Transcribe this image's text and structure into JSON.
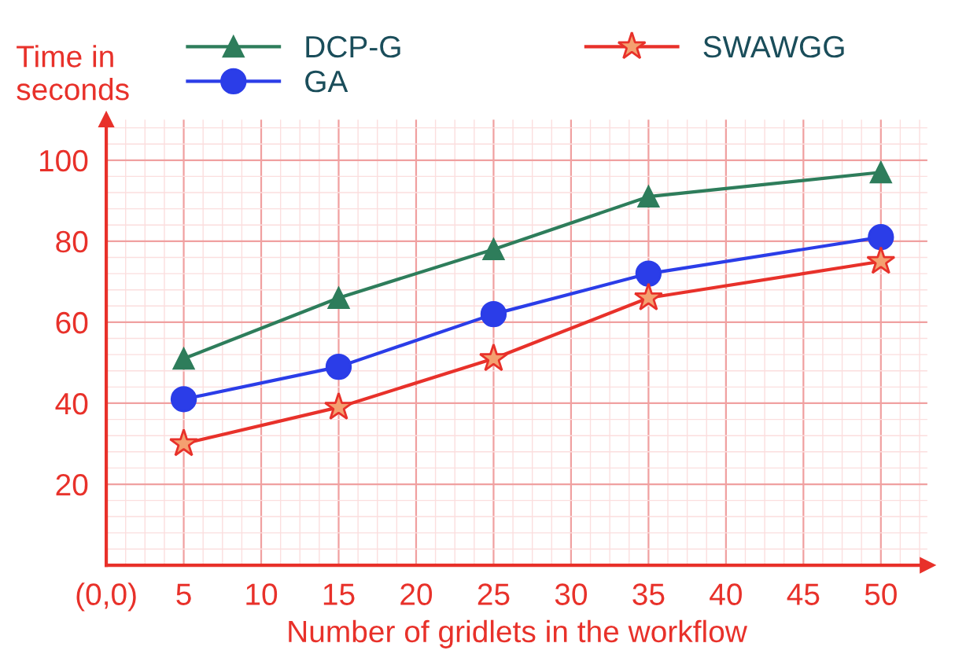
{
  "chart_data": {
    "type": "line",
    "xlabel": "Number of gridlets in the workflow",
    "ylabel": "Time in\nseconds",
    "x": [
      5,
      15,
      25,
      35,
      50
    ],
    "series": [
      {
        "name": "DCP-G",
        "color": "#2e7d5b",
        "marker": "triangle",
        "values": [
          51,
          66,
          78,
          91,
          97
        ]
      },
      {
        "name": "GA",
        "color": "#2b3de8",
        "marker": "circle",
        "values": [
          41,
          49,
          62,
          72,
          81
        ]
      },
      {
        "name": "SWAWGG",
        "color": "#e8312a",
        "marker": "star",
        "values": [
          30,
          39,
          51,
          66,
          75
        ]
      }
    ],
    "xlim": [
      0,
      53
    ],
    "ylim": [
      0,
      110
    ],
    "xticks": [
      {
        "value": 0,
        "label": "(0,0)"
      },
      5,
      10,
      15,
      20,
      25,
      30,
      35,
      40,
      45,
      50
    ],
    "yticks": [
      20,
      40,
      60,
      80,
      100
    ],
    "grid": true,
    "legend": "top"
  }
}
